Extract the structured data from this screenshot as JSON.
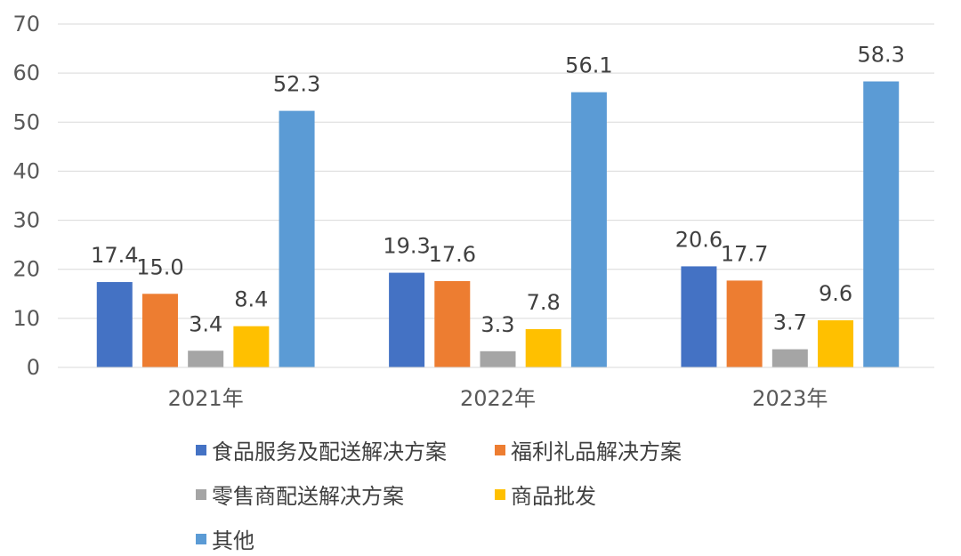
{
  "chart_data": {
    "type": "bar",
    "categories": [
      "2021年",
      "2022年",
      "2023年"
    ],
    "series": [
      {
        "name": "食品服务及配送解决方案",
        "values": [
          17.4,
          19.3,
          20.6
        ],
        "labels": [
          "17.4",
          "19.3",
          "20.6"
        ],
        "color": "#4472C4"
      },
      {
        "name": "福利礼品解决方案",
        "values": [
          15.0,
          17.6,
          17.7
        ],
        "labels": [
          "15.0",
          "17.6",
          "17.7"
        ],
        "color": "#ED7D31"
      },
      {
        "name": "零售商配送解决方案",
        "values": [
          3.4,
          3.3,
          3.7
        ],
        "labels": [
          "3.4",
          "3.3",
          "3.7"
        ],
        "color": "#A5A5A5"
      },
      {
        "name": "商品批发",
        "values": [
          8.4,
          7.8,
          9.6
        ],
        "labels": [
          "8.4",
          "7.8",
          "9.6"
        ],
        "color": "#FFC000"
      },
      {
        "name": "其他",
        "values": [
          52.3,
          56.1,
          58.3
        ],
        "labels": [
          "52.3",
          "56.1",
          "58.3"
        ],
        "color": "#5B9BD5"
      }
    ],
    "yticks": [
      "0",
      "10",
      "20",
      "30",
      "40",
      "50",
      "60",
      "70"
    ],
    "ylim": [
      0,
      70
    ],
    "grid": true,
    "legend_position": "bottom"
  }
}
